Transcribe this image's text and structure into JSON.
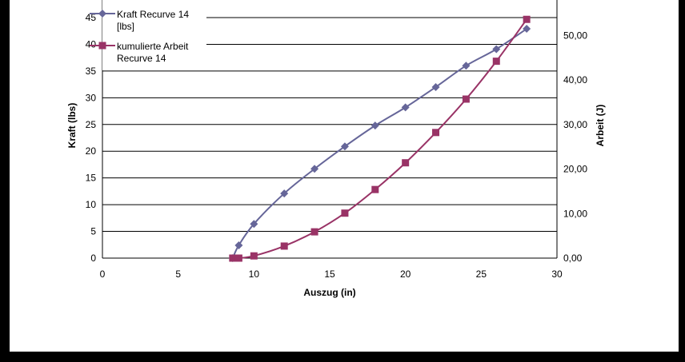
{
  "chart_data": {
    "type": "line",
    "xlabel": "Auszug (in)",
    "ylabel_left": "Kraft (lbs)",
    "ylabel_right": "Arbeit (J)",
    "xlim": [
      0,
      30
    ],
    "ylim_left": [
      0,
      45
    ],
    "ylim_right": [
      0,
      54
    ],
    "x_ticks": [
      "0",
      "5",
      "10",
      "15",
      "20",
      "25",
      "30"
    ],
    "y_left_ticks": [
      "0",
      "5",
      "10",
      "15",
      "20",
      "25",
      "30",
      "35",
      "40",
      "45"
    ],
    "y_right_ticks": [
      "0,00",
      "10,00",
      "20,00",
      "30,00",
      "40,00",
      "50,00"
    ],
    "grid": true,
    "legend_position": "top-left",
    "series": [
      {
        "name": "Kraft Recurve 14 [lbs]",
        "legend_lines": [
          "Kraft Recurve 14",
          "[lbs]"
        ],
        "axis": "left",
        "color": "#666699",
        "marker": "diamond",
        "x": [
          8.6,
          9,
          10,
          12,
          14,
          16,
          18,
          20,
          22,
          24,
          26,
          28
        ],
        "y": [
          0,
          2.4,
          6.4,
          12.1,
          16.7,
          20.9,
          24.8,
          28.2,
          32.0,
          36.0,
          39.1,
          42.9
        ]
      },
      {
        "name": "kumulierte Arbeit Recurve 14",
        "legend_lines": [
          "kumulierte Arbeit",
          "Recurve 14"
        ],
        "axis": "right",
        "color": "#993366",
        "marker": "square",
        "x": [
          8.6,
          8.8,
          9,
          10,
          12,
          14,
          16,
          18,
          20,
          22,
          24,
          26,
          28
        ],
        "y": [
          0,
          0,
          0,
          0.5,
          2.7,
          5.9,
          10.1,
          15.4,
          21.4,
          28.2,
          35.7,
          44.2,
          53.6
        ]
      }
    ]
  }
}
